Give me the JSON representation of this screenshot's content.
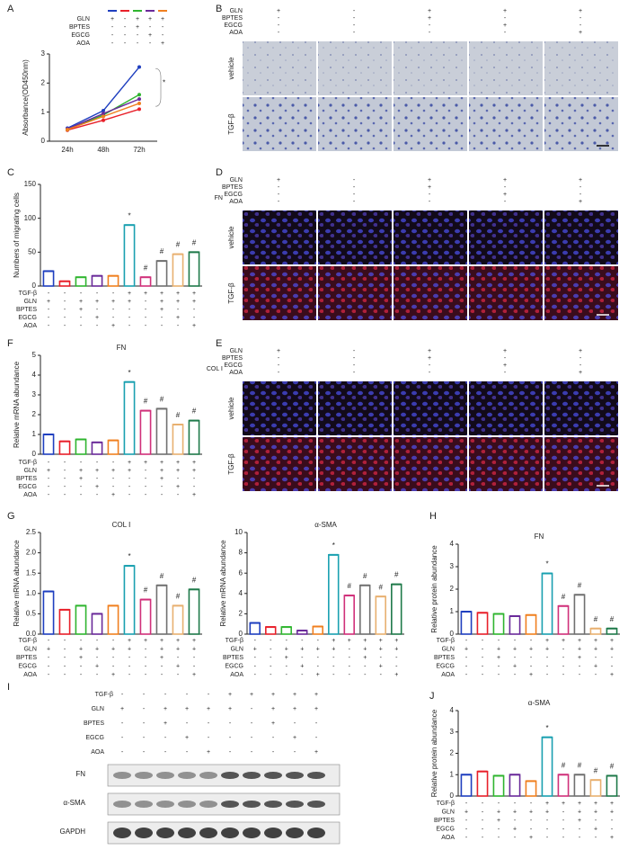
{
  "panel_letters": [
    "A",
    "B",
    "C",
    "D",
    "E",
    "F",
    "G",
    "H",
    "I",
    "J"
  ],
  "treatments": {
    "labels": [
      "TGF-β",
      "GLN",
      "BPTES",
      "EGCG",
      "AOA"
    ],
    "ten": [
      [
        "-",
        "-",
        "-",
        "-",
        "-",
        "+",
        "+",
        "+",
        "+",
        "+"
      ],
      [
        "+",
        "-",
        "+",
        "+",
        "+",
        "+",
        "-",
        "+",
        "+",
        "+"
      ],
      [
        "-",
        "-",
        "+",
        "-",
        "-",
        "-",
        "-",
        "+",
        "-",
        "-"
      ],
      [
        "-",
        "-",
        "-",
        "+",
        "-",
        "-",
        "-",
        "-",
        "+",
        "-"
      ],
      [
        "-",
        "-",
        "-",
        "-",
        "+",
        "-",
        "-",
        "-",
        "-",
        "+"
      ]
    ],
    "five": [
      [
        "+",
        "-",
        "+",
        "+",
        "+"
      ],
      [
        "-",
        "-",
        "+",
        "-",
        "-"
      ],
      [
        "-",
        "-",
        "-",
        "+",
        "-"
      ],
      [
        "-",
        "-",
        "-",
        "-",
        "+"
      ]
    ]
  },
  "images": {
    "rows": [
      "vehicle",
      "TGF-β"
    ],
    "D_stain": "FN",
    "E_stain": "COL Ⅰ"
  },
  "blot": {
    "rows": [
      "FN",
      "α-SMA",
      "GAPDH"
    ]
  },
  "chart_data": [
    {
      "type": "line",
      "y_label": "Absorbance(OD450nm)",
      "categories": [
        "24h",
        "48h",
        "72h"
      ],
      "ylim": [
        0,
        3
      ],
      "yticks": [
        0,
        1,
        2,
        3
      ],
      "annotation": "*",
      "series": [
        {
          "color": "#1f3fbf",
          "values": [
            0.45,
            1.05,
            2.55
          ]
        },
        {
          "color": "#e8202a",
          "values": [
            0.38,
            0.72,
            1.1
          ]
        },
        {
          "color": "#2fb52f",
          "values": [
            0.4,
            0.9,
            1.6
          ]
        },
        {
          "color": "#6a2a9a",
          "values": [
            0.42,
            0.95,
            1.45
          ]
        },
        {
          "color": "#f08020",
          "values": [
            0.4,
            0.85,
            1.3
          ]
        }
      ]
    },
    {
      "type": "bar",
      "y_label": "Numbers of migrating cells",
      "ylim": [
        0,
        150
      ],
      "yticks": [
        0,
        50,
        100,
        150
      ],
      "values": [
        22,
        7,
        13,
        15,
        15,
        90,
        13,
        37,
        47,
        50
      ],
      "annotations": [
        null,
        null,
        null,
        null,
        null,
        "*",
        "#",
        "#",
        "#",
        "#"
      ]
    },
    {
      "type": "bar",
      "title": "FN",
      "y_label": "Relative mRNA abundance",
      "ylim": [
        0,
        5
      ],
      "yticks": [
        0,
        1,
        2,
        3,
        4,
        5
      ],
      "values": [
        1.0,
        0.65,
        0.75,
        0.6,
        0.7,
        3.65,
        2.2,
        2.3,
        1.5,
        1.7
      ],
      "annotations": [
        null,
        null,
        null,
        null,
        null,
        "*",
        "#",
        "#",
        "#",
        "#"
      ]
    },
    {
      "type": "bar",
      "title": "COL Ⅰ",
      "y_label": "Relative mRNA abundance",
      "ylim": [
        0,
        2.5
      ],
      "yticks": [
        {
          "value": 0,
          "label": "0.0"
        },
        {
          "value": 0.5,
          "label": "0.5"
        },
        {
          "value": 1,
          "label": "1.0"
        },
        {
          "value": 1.5,
          "label": "1.5"
        },
        {
          "value": 2,
          "label": "2.0"
        },
        {
          "value": 2.5,
          "label": "2.5"
        }
      ],
      "values": [
        1.05,
        0.6,
        0.7,
        0.5,
        0.7,
        1.68,
        0.85,
        1.2,
        0.7,
        1.1
      ],
      "annotations": [
        null,
        null,
        null,
        null,
        null,
        "*",
        "#",
        "#",
        "#",
        "#"
      ]
    },
    {
      "type": "bar",
      "title": "α-SMA",
      "y_label": "Relative mRNA abundance",
      "ylim": [
        0,
        10
      ],
      "yticks": [
        0,
        2,
        4,
        6,
        8,
        10
      ],
      "values": [
        1.1,
        0.7,
        0.7,
        0.35,
        0.75,
        7.8,
        3.8,
        4.8,
        3.7,
        4.9
      ],
      "annotations": [
        null,
        null,
        null,
        null,
        null,
        "*",
        "#",
        "#",
        "#",
        "#"
      ]
    },
    {
      "type": "bar",
      "title": "FN",
      "y_label": "Relative protein abundance",
      "ylim": [
        0,
        4
      ],
      "yticks": [
        0,
        1,
        2,
        3,
        4
      ],
      "values": [
        1.0,
        0.95,
        0.9,
        0.8,
        0.85,
        2.7,
        1.25,
        1.75,
        0.25,
        0.25
      ],
      "annotations": [
        null,
        null,
        null,
        null,
        null,
        "*",
        "#",
        "#",
        "#",
        "#"
      ]
    },
    {
      "type": "bar",
      "title": "α-SMA",
      "y_label": "Relative protein abundance",
      "ylim": [
        0,
        4
      ],
      "yticks": [
        0,
        1,
        2,
        3,
        4
      ],
      "values": [
        1.0,
        1.15,
        0.95,
        1.0,
        0.7,
        2.75,
        1.0,
        1.0,
        0.75,
        0.95
      ],
      "annotations": [
        null,
        null,
        null,
        null,
        null,
        "*",
        "#",
        "#",
        "#",
        "#"
      ]
    }
  ],
  "bar_colors": [
    "#1f3fbf",
    "#e8202a",
    "#2fb52f",
    "#6a2a9a",
    "#f08020",
    "#1aa0b0",
    "#d0307a",
    "#707070",
    "#e8b070",
    "#1f7a4a"
  ]
}
